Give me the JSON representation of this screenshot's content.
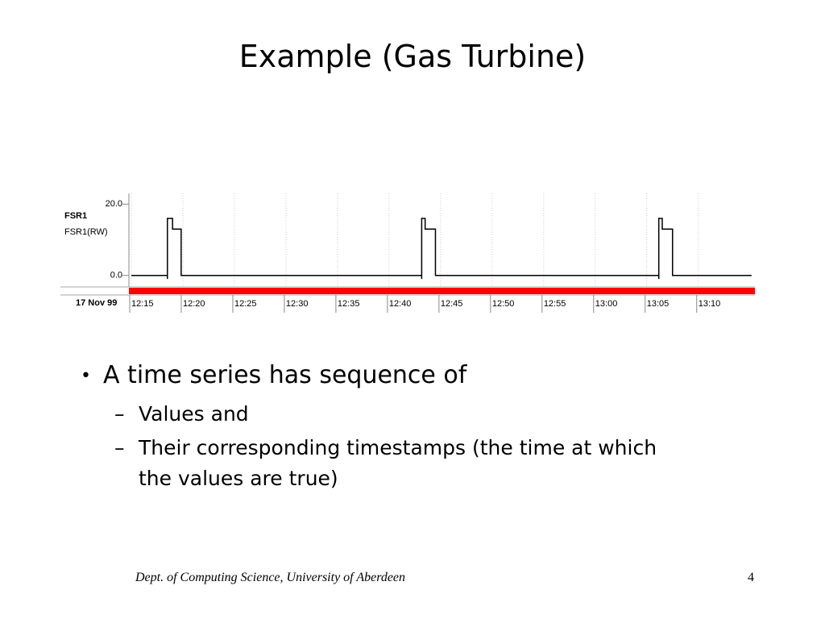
{
  "slide": {
    "title": "Example (Gas Turbine)",
    "bullets": [
      {
        "text": "A time series has sequence of",
        "sub": [
          "Values and",
          "Their  corresponding timestamps (the time at which the values are true)"
        ]
      }
    ],
    "footer": "Dept. of Computing Science, University of Aberdeen",
    "page_number": "4"
  },
  "chart_data": {
    "type": "line",
    "date_label": "17 Nov 99",
    "y_label": "FSR1(RW)",
    "x": [
      "12:15",
      "12:18:30",
      "12:18:30",
      "12:18:30",
      "12:19",
      "12:19",
      "12:19:50",
      "12:19:50",
      "12:43:10",
      "12:43:10",
      "12:43:10",
      "12:43:30",
      "12:43:30",
      "12:44:30",
      "12:44:30",
      "13:06:10",
      "13:06:10",
      "13:06:10",
      "13:06:30",
      "13:06:30",
      "13:07:30",
      "13:07:30",
      "13:15:10"
    ],
    "series": [
      {
        "name": "FSR1",
        "color": "#000000",
        "values": [
          0,
          0,
          -1,
          16,
          16,
          13,
          13,
          0,
          0,
          -1,
          16,
          16,
          13,
          13,
          0,
          0,
          -1,
          16,
          16,
          13,
          13,
          0,
          0
        ]
      }
    ],
    "xlim": [
      "12:15",
      "13:15:20"
    ],
    "xticks": [
      "12:15",
      "12:20",
      "12:25",
      "12:30",
      "12:35",
      "12:40",
      "12:45",
      "12:50",
      "12:55",
      "13:00",
      "13:05",
      "13:10"
    ],
    "ylim": [
      -3,
      23
    ],
    "yticks": [
      {
        "value": 0,
        "label": "0.0"
      },
      {
        "value": 20,
        "label": "20.0"
      }
    ],
    "grid": true,
    "band_color": "#ff0000"
  }
}
